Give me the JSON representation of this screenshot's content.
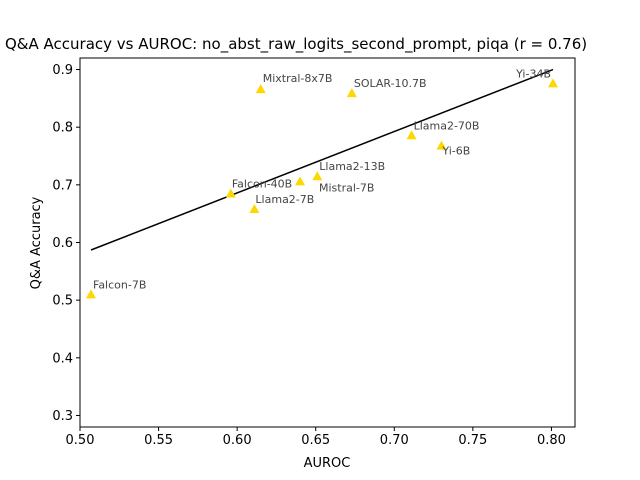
{
  "chart_data": {
    "type": "scatter",
    "title": "Q&A Accuracy vs AUROC: no_abst_raw_logits_second_prompt, piqa (r = 0.76)",
    "xlabel": "AUROC",
    "ylabel": "Q&A Accuracy",
    "xlim": [
      0.5,
      0.815
    ],
    "ylim": [
      0.28,
      0.92
    ],
    "xticks": [
      "0.50",
      "0.55",
      "0.60",
      "0.65",
      "0.70",
      "0.75",
      "0.80"
    ],
    "yticks": [
      "0.3",
      "0.4",
      "0.5",
      "0.6",
      "0.7",
      "0.8",
      "0.9"
    ],
    "marker_color": "#FFD700",
    "line_color": "#000000",
    "points": [
      {
        "label": "Falcon-7B",
        "x": 0.507,
        "y": 0.51
      },
      {
        "label": "Falcon-40B",
        "x": 0.596,
        "y": 0.685
      },
      {
        "label": "Llama2-7B",
        "x": 0.611,
        "y": 0.658
      },
      {
        "label": "Mixtral-8x7B",
        "x": 0.615,
        "y": 0.866
      },
      {
        "label": "Mistral-7B",
        "x": 0.64,
        "y": 0.706
      },
      {
        "label": "Llama2-13B",
        "x": 0.651,
        "y": 0.715
      },
      {
        "label": "SOLAR-10.7B",
        "x": 0.673,
        "y": 0.859
      },
      {
        "label": "Llama2-70B",
        "x": 0.711,
        "y": 0.786
      },
      {
        "label": "Yi-6B",
        "x": 0.73,
        "y": 0.768
      },
      {
        "label": "Yi-34B",
        "x": 0.801,
        "y": 0.876
      }
    ],
    "fit_line": {
      "x": [
        0.507,
        0.801
      ],
      "y": [
        0.587,
        0.9
      ]
    }
  }
}
